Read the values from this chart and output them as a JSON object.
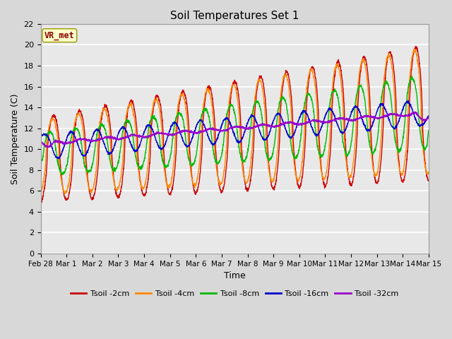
{
  "title": "Soil Temperatures Set 1",
  "xlabel": "Time",
  "ylabel": "Soil Temperature (C)",
  "ylim": [
    0,
    22
  ],
  "yticks": [
    0,
    2,
    4,
    6,
    8,
    10,
    12,
    14,
    16,
    18,
    20,
    22
  ],
  "xlim_days": [
    0,
    15
  ],
  "xtick_labels": [
    "Feb 28",
    "Mar 1",
    "Mar 2",
    "Mar 3",
    "Mar 4",
    "Mar 5",
    "Mar 6",
    "Mar 7",
    "Mar 8",
    "Mar 9",
    "Mar 10",
    "Mar 11",
    "Mar 12",
    "Mar 13",
    "Mar 14",
    "Mar 15"
  ],
  "bg_color": "#d8d8d8",
  "plot_bg_color": "#e8e8e8",
  "grid_color": "white",
  "colors": {
    "Tsoil -2cm": "#cc0000",
    "Tsoil -4cm": "#ff8800",
    "Tsoil -8cm": "#00bb00",
    "Tsoil -16cm": "#0000cc",
    "Tsoil -32cm": "#9900cc"
  },
  "annotation_text": "VR_met",
  "annotation_bg": "#ffffcc",
  "annotation_border": "#999900"
}
